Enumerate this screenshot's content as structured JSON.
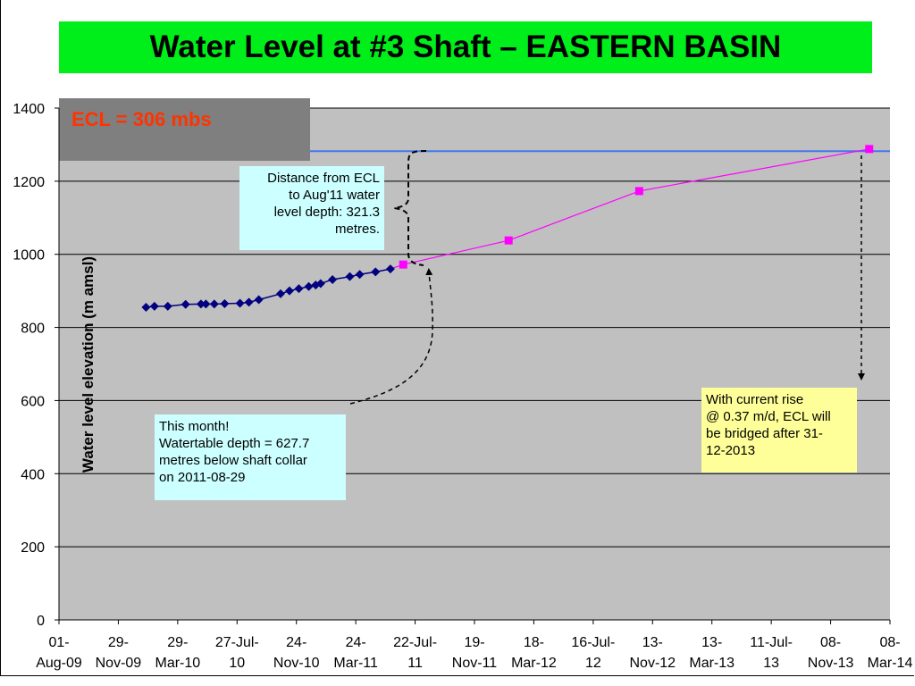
{
  "title": "Water Level at #3 Shaft – EASTERN BASIN",
  "annotations": {
    "ecl_label": "ECL = 306 mbs",
    "distance_callout": [
      "Distance from ECL",
      "to Aug'11 water",
      "level depth: 321.3",
      "metres."
    ],
    "this_month_callout": [
      "This month!",
      "Watertable depth = 627.7",
      "metres below shaft collar",
      "on 2011-08-29"
    ],
    "rise_callout": [
      "With current rise",
      "@ 0.37 m/d, ECL will",
      "be bridged after 31-",
      "12-2013"
    ]
  },
  "colors": {
    "title_bg": "#00ee1a",
    "plot_bg": "#c0c0c0",
    "observed_series": "#000080",
    "projection_series": "#ff00ff",
    "ecl_line": "#4477ee",
    "ecl_box": "#7f7f7f",
    "ecl_text": "#ff3300",
    "callout_cyan": "#ccffff",
    "callout_yellow": "#ffff99"
  },
  "chart_data": {
    "type": "line",
    "title": "Water Level at #3 Shaft – EASTERN BASIN",
    "xlabel": "",
    "ylabel": "Water level elevation (m amsl)",
    "ylim": [
      0,
      1400
    ],
    "yticks": [
      0,
      200,
      400,
      600,
      800,
      1000,
      1200,
      1400
    ],
    "xlim": [
      "2009-08-01",
      "2014-03-08"
    ],
    "xticks": [
      {
        "date": "2009-08-01",
        "label": [
          "01-",
          "Aug-09"
        ]
      },
      {
        "date": "2009-11-29",
        "label": [
          "29-",
          "Nov-09"
        ]
      },
      {
        "date": "2010-03-29",
        "label": [
          "29-",
          "Mar-10"
        ]
      },
      {
        "date": "2010-07-27",
        "label": [
          "27-Jul-",
          "10"
        ]
      },
      {
        "date": "2010-11-24",
        "label": [
          "24-",
          "Nov-10"
        ]
      },
      {
        "date": "2011-03-24",
        "label": [
          "24-",
          "Mar-11"
        ]
      },
      {
        "date": "2011-07-22",
        "label": [
          "22-Jul-",
          "11"
        ]
      },
      {
        "date": "2011-11-19",
        "label": [
          "19-",
          "Nov-11"
        ]
      },
      {
        "date": "2012-03-18",
        "label": [
          "18-",
          "Mar-12"
        ]
      },
      {
        "date": "2012-07-16",
        "label": [
          "16-Jul-",
          "12"
        ]
      },
      {
        "date": "2012-11-13",
        "label": [
          "13-",
          "Nov-12"
        ]
      },
      {
        "date": "2013-03-13",
        "label": [
          "13-",
          "Mar-13"
        ]
      },
      {
        "date": "2013-07-11",
        "label": [
          "11-Jul-",
          "13"
        ]
      },
      {
        "date": "2013-11-08",
        "label": [
          "08-",
          "Nov-13"
        ]
      },
      {
        "date": "2014-03-08",
        "label": [
          "08-",
          "Mar-14"
        ]
      }
    ],
    "grid": true,
    "reference_lines": [
      {
        "y": 1282,
        "label": "ECL = 306 mbs"
      }
    ],
    "series": [
      {
        "marker": "diamond",
        "points": [
          {
            "x": "2010-01-24",
            "y": 855
          },
          {
            "x": "2010-02-10",
            "y": 858
          },
          {
            "x": "2010-03-09",
            "y": 858
          },
          {
            "x": "2010-04-14",
            "y": 863
          },
          {
            "x": "2010-05-15",
            "y": 864
          },
          {
            "x": "2010-05-25",
            "y": 864
          },
          {
            "x": "2010-06-11",
            "y": 864
          },
          {
            "x": "2010-07-02",
            "y": 865
          },
          {
            "x": "2010-08-02",
            "y": 866
          },
          {
            "x": "2010-08-20",
            "y": 869
          },
          {
            "x": "2010-09-09",
            "y": 876
          },
          {
            "x": "2010-10-23",
            "y": 892
          },
          {
            "x": "2010-11-10",
            "y": 900
          },
          {
            "x": "2010-11-29",
            "y": 906
          },
          {
            "x": "2010-12-19",
            "y": 912
          },
          {
            "x": "2011-01-02",
            "y": 916
          },
          {
            "x": "2011-01-12",
            "y": 920
          },
          {
            "x": "2011-02-05",
            "y": 931
          },
          {
            "x": "2011-03-12",
            "y": 939
          },
          {
            "x": "2011-04-01",
            "y": 945
          },
          {
            "x": "2011-05-03",
            "y": 952
          },
          {
            "x": "2011-06-02",
            "y": 960
          }
        ]
      },
      {
        "marker": "square",
        "points": [
          {
            "x": "2011-06-28",
            "y": 972
          },
          {
            "x": "2012-01-27",
            "y": 1038
          },
          {
            "x": "2012-10-17",
            "y": 1173
          },
          {
            "x": "2014-01-25",
            "y": 1288
          }
        ]
      }
    ]
  }
}
